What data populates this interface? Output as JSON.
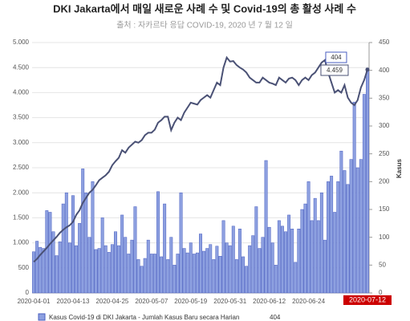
{
  "chart_data": {
    "type": "bar-line",
    "title": "DKI Jakarta에서 매일 새로운 사례 수 및 Covid-19의 총 활성 사례 수",
    "subtitle": "출처 : 자카르타 응답 COVID-19, 2020 년 7 월 12 일",
    "y2label": "Kasus",
    "categories": [
      "2020-04-01",
      null,
      null,
      null,
      null,
      null,
      null,
      null,
      null,
      null,
      null,
      null,
      "2020-04-13",
      null,
      null,
      null,
      null,
      null,
      null,
      null,
      null,
      null,
      null,
      null,
      "2020-04-25",
      null,
      null,
      null,
      null,
      null,
      null,
      null,
      null,
      null,
      null,
      null,
      "2020-05-07",
      null,
      null,
      null,
      null,
      null,
      null,
      null,
      null,
      null,
      null,
      null,
      "2020-05-19",
      null,
      null,
      null,
      null,
      null,
      null,
      null,
      null,
      null,
      null,
      null,
      "2020-05-31",
      null,
      null,
      null,
      null,
      null,
      null,
      null,
      null,
      null,
      null,
      null,
      "2020-06-12",
      null,
      null,
      null,
      null,
      null,
      null,
      null,
      null,
      null,
      null,
      null,
      "2020-06-24",
      null,
      null,
      null,
      null,
      null,
      null,
      null,
      null,
      null,
      null,
      null,
      null,
      null,
      null,
      null,
      null,
      null,
      "2020-07-12"
    ],
    "series": [
      {
        "name": "Kasus Covid-19 di DKI Jakarta - Jumlah Kasus Baru secara Harian",
        "color": "#8da0e0",
        "axis": "y2",
        "values": [
          74,
          93,
          82,
          80,
          148,
          145,
          110,
          67,
          92,
          160,
          180,
          90,
          175,
          85,
          125,
          223,
          180,
          100,
          200,
          78,
          80,
          135,
          85,
          73,
          87,
          110,
          85,
          140,
          100,
          70,
          95,
          155,
          60,
          48,
          62,
          95,
          70,
          70,
          182,
          65,
          160,
          60,
          100,
          50,
          70,
          180,
          80,
          72,
          90,
          70,
          72,
          106,
          75,
          80,
          87,
          60,
          84,
          66,
          130,
          90,
          85,
          120,
          60,
          115,
          65,
          48,
          85,
          103,
          155,
          80,
          100,
          238,
          118,
          90,
          50,
          130,
          120,
          110,
          140,
          115,
          55,
          115,
          150,
          160,
          200,
          130,
          170,
          130,
          180,
          95,
          200,
          210,
          145,
          200,
          255,
          220,
          195,
          240,
          343,
          225,
          240,
          357,
          404
        ]
      },
      {
        "color": "#4a5175",
        "axis": "y",
        "values": [
          620,
          680,
          760,
          830,
          900,
          980,
          1050,
          1120,
          1200,
          1260,
          1310,
          1350,
          1420,
          1560,
          1650,
          1800,
          1900,
          2000,
          2060,
          2150,
          2250,
          2300,
          2350,
          2420,
          2550,
          2630,
          2700,
          2850,
          2800,
          2900,
          2960,
          3020,
          3000,
          3050,
          3150,
          3200,
          3200,
          3260,
          3400,
          3450,
          3520,
          3520,
          3250,
          3400,
          3500,
          3450,
          3600,
          3700,
          3800,
          3780,
          3760,
          3850,
          3900,
          3950,
          3900,
          4050,
          4200,
          4150,
          4500,
          4700,
          4620,
          4630,
          4550,
          4500,
          4460,
          4400,
          4300,
          4250,
          4200,
          4200,
          4300,
          4250,
          4200,
          4180,
          4150,
          4300,
          4250,
          4200,
          4280,
          4300,
          4250,
          4150,
          4250,
          4300,
          4250,
          4350,
          4400,
          4500,
          4600,
          4650,
          4400,
          4200,
          4000,
          4050,
          4000,
          4150,
          3900,
          3800,
          3750,
          3850,
          4100,
          4250,
          4459
        ],
        "value_labels": [
          null,
          null,
          null,
          null,
          null,
          null,
          null,
          null,
          null,
          null,
          null,
          null,
          null,
          null,
          null,
          null,
          null,
          null,
          null,
          null,
          null,
          null,
          null,
          null,
          null,
          null,
          null,
          null,
          null,
          null,
          null,
          null,
          null,
          null,
          null,
          null,
          null,
          null,
          null,
          null,
          null,
          null,
          null,
          null,
          null,
          null,
          null,
          null,
          null,
          null,
          null,
          null,
          null,
          null,
          null,
          null,
          null,
          null,
          null,
          null,
          null,
          null,
          null,
          null,
          null,
          null,
          null,
          null,
          null,
          null,
          null,
          null,
          null,
          null,
          null,
          null,
          null,
          null,
          null,
          null,
          null,
          null,
          null,
          null,
          null,
          null,
          null,
          null,
          null,
          null,
          null,
          null,
          null,
          null,
          null,
          null,
          null,
          null,
          null,
          null,
          null,
          null,
          "4.459"
        ]
      }
    ],
    "ylim": [
      0,
      5000
    ],
    "yticks": [
      0,
      {
        "value": 500,
        "label": "500"
      },
      {
        "value": 1000,
        "label": "1.000"
      },
      {
        "value": 1500,
        "label": "1.500"
      },
      {
        "value": 2000,
        "label": "2.000"
      },
      {
        "value": 2500,
        "label": "2.500"
      },
      {
        "value": 3000,
        "label": "3.000"
      },
      {
        "value": 3500,
        "label": "3.500"
      },
      {
        "value": 4000,
        "label": "4.000"
      },
      {
        "value": 4500,
        "label": "4.500"
      },
      {
        "value": 5000,
        "label": "5.000"
      }
    ],
    "y2lim": [
      0,
      450
    ],
    "y2ticks": [
      0,
      50,
      100,
      150,
      200,
      250,
      300,
      350,
      400,
      450
    ],
    "grid": true
  }
}
